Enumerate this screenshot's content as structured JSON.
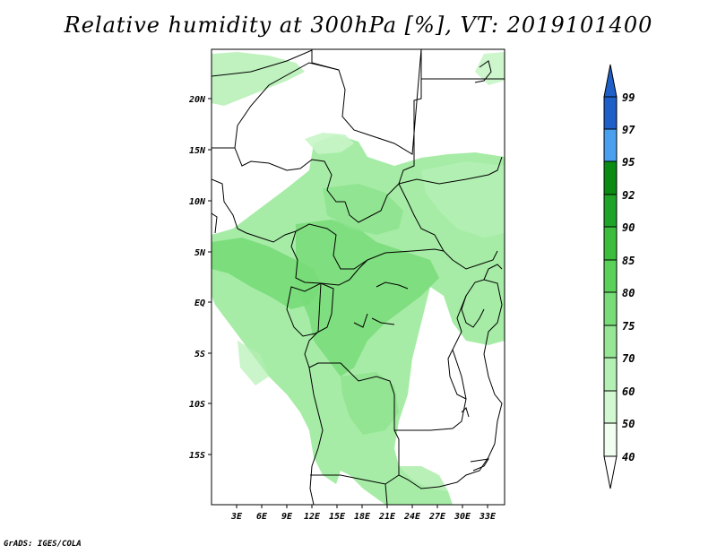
{
  "title": "Relative humidity at 300hPa [%], VT: 2019101400",
  "credit": "GrADS: IGES/COLA",
  "map": {
    "lat_labels": [
      "20N",
      "15N",
      "10N",
      "5N",
      "EQ",
      "5S",
      "10S",
      "15S"
    ],
    "lon_labels": [
      "3E",
      "6E",
      "9E",
      "12E",
      "15E",
      "18E",
      "21E",
      "24E",
      "27E",
      "30E",
      "33E"
    ]
  },
  "colorbar": {
    "levels": [
      "99",
      "97",
      "95",
      "92",
      "90",
      "85",
      "80",
      "75",
      "70",
      "60",
      "50",
      "40"
    ],
    "colors": [
      "#1e5fc8",
      "#2878e6",
      "#4aa0f0",
      "#0a8c14",
      "#1ea528",
      "#3cbe3c",
      "#5ad25a",
      "#78dc78",
      "#96e696",
      "#b4f0b4",
      "#d2f8d2",
      "#f0fff0"
    ]
  },
  "colors": {
    "land": "#ffffff",
    "border": "#000000"
  }
}
